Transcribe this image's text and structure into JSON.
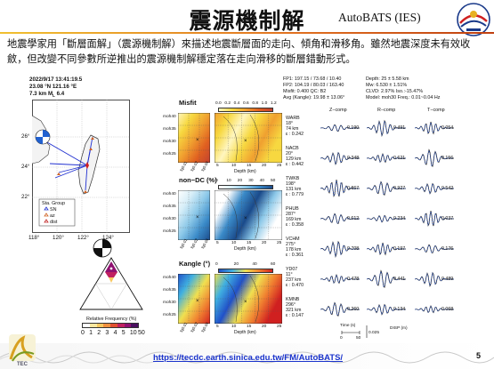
{
  "slide": {
    "title": "震源機制解",
    "brand": "AutoBATS (IES)",
    "description": "地震學家用「斷層面解」（震源機制解）來描述地震斷層面的走向、傾角和滑移角。雖然地震深度未有效收斂，但改變不同參數所逆推出的震源機制解穩定落在走向滑移的斷層錯動形式。",
    "url": "https://tecdc.earth.sinica.edu.tw/FM/AutoBATS/",
    "page_number": "5"
  },
  "event": {
    "datetime": "2022/9/17   13:41:19.5",
    "location": "23.08 °N  121.16 °E",
    "depth_mag": "7.3 km  M",
    "mag_sub": "L",
    "mag_val": "6.4"
  },
  "map": {
    "lat_labels": [
      "26°",
      "24°",
      "22°"
    ],
    "lon_labels": [
      "118°",
      "120°",
      "122°",
      "124°"
    ],
    "legend_title": "Sta. Group",
    "legend_items": [
      "SN",
      "az",
      "dist"
    ]
  },
  "ternary": {
    "legend_title": "Relative Frequency (%)",
    "ticks": [
      "0",
      "1",
      "2",
      "3",
      "4",
      "5",
      "10",
      "50"
    ],
    "colors": [
      "#ffffff",
      "#fde8a0",
      "#f8c860",
      "#f09040",
      "#e05030",
      "#c02060",
      "#8e1070",
      "#4a1060"
    ]
  },
  "params": {
    "col1": [
      "FP1: 197.15 / 73.68 / 10.40",
      "FP2: 104.19 / 80.03 / 163.40",
      "Misfit: 0.400   QC: B2",
      "Avg (Kangle): 19.98 ± 13.06°"
    ],
    "col2": [
      "Depth: 25 ± 5.58 km",
      "Mw: 6.530 ± 1.51%",
      "CLVD: 2.97%   Iso.:-15.47%",
      "Model: moh30   Freq.: 0.01~0.04 Hz"
    ]
  },
  "grids": {
    "row_labels": [
      "moh40",
      "moh35",
      "moh30",
      "moh25"
    ],
    "col_labels": [
      "fq0.01",
      "fq0.02",
      "fq0.04"
    ],
    "depth_label": "Depth (km)",
    "depth_ticks": [
      "5",
      "10",
      "15",
      "20",
      "25"
    ],
    "misfit": {
      "label": "Misfit",
      "cbar_ticks": [
        "0.0",
        "0.2",
        "0.4",
        "0.6",
        "0.8",
        "1.0",
        "1.2"
      ]
    },
    "nondc": {
      "label": "non−DC (%)",
      "cbar_ticks": [
        "0",
        "10",
        "20",
        "30",
        "40",
        "50"
      ]
    },
    "kangle": {
      "label": "Kangle (°)",
      "cbar_ticks": [
        "0",
        "20",
        "40",
        "60"
      ]
    }
  },
  "waveforms": {
    "headers": [
      "Z−comp",
      "R−comp",
      "T−comp"
    ],
    "stations": [
      {
        "name": "WARB",
        "az": "18°",
        "dist": "74 km",
        "eps": "ε : 0.242",
        "cc": [
          "0.190",
          "0.491",
          "0.054"
        ]
      },
      {
        "name": "NACB",
        "az": "20°",
        "dist": "129 km",
        "eps": "ε : 0.442",
        "cc": [
          "0.348",
          "0.621",
          "0.156"
        ]
      },
      {
        "name": "TWKB",
        "az": "198°",
        "dist": "131 km",
        "eps": "ε : 0.779",
        "cc": [
          "0.867",
          "0.927",
          "0.542"
        ]
      },
      {
        "name": "PHUB",
        "az": "287°",
        "dist": "169 km",
        "eps": "ε : 0.358",
        "cc": [
          "0.612",
          "0.234",
          "0.037"
        ]
      },
      {
        "name": "VCHM",
        "az": "275°",
        "dist": "178 km",
        "eps": "ε : 0.361",
        "cc": [
          "0.708",
          "0.197",
          "0.176"
        ]
      },
      {
        "name": "YD07",
        "az": "11°",
        "dist": "237 km",
        "eps": "ε : 0.470",
        "cc": [
          "0.478",
          "0.441",
          "0.489"
        ]
      },
      {
        "name": "KMNB",
        "az": "296°",
        "dist": "321 km",
        "eps": "ε : 0.147",
        "cc": [
          "0.260",
          "0.134",
          "0.068"
        ]
      }
    ],
    "scale": {
      "time_label": "Time (s)",
      "time_ticks": [
        "0",
        "50"
      ],
      "amp_label": "0.025",
      "unit": "DISP (m)"
    }
  }
}
